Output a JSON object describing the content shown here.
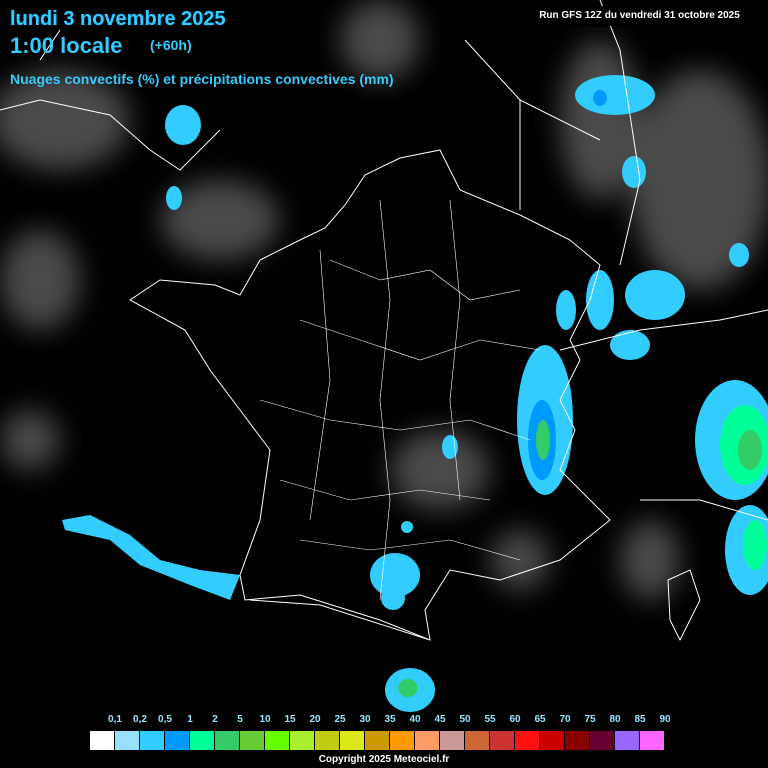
{
  "header": {
    "date": "lundi 3 novembre 2025",
    "time": "1:00 locale",
    "lead": "(+60h)",
    "subtitle": "Nuages convectifs (%) et précipitations convectives (mm)",
    "run": "Run GFS 12Z du vendredi 31 octobre 2025"
  },
  "legend": {
    "labels": [
      "0,1",
      "0,2",
      "0,5",
      "1",
      "2",
      "5",
      "10",
      "15",
      "20",
      "25",
      "30",
      "35",
      "40",
      "45",
      "50",
      "55",
      "60",
      "65",
      "70",
      "75",
      "80",
      "85",
      "90"
    ],
    "colors": [
      "#ffffff",
      "#99e0ff",
      "#33ccff",
      "#0099ff",
      "#00ff99",
      "#33cc66",
      "#66cc33",
      "#66ff00",
      "#a6f030",
      "#bfcc11",
      "#dde81a",
      "#cc9900",
      "#ff9900",
      "#ff9966",
      "#cc9999",
      "#cc6633",
      "#cc3333",
      "#ff1111",
      "#cc0000",
      "#880000",
      "#660033",
      "#9966ff",
      "#ff66ff"
    ]
  },
  "footer": {
    "copyright": "Copyright 2025 Meteociel.fr"
  }
}
